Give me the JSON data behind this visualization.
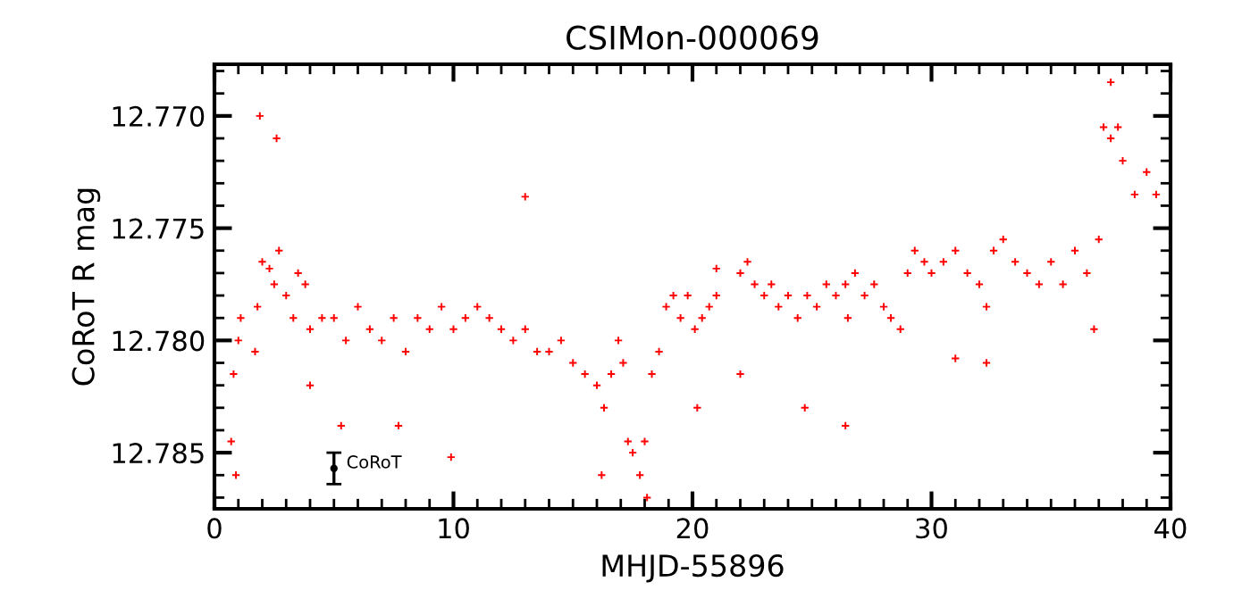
{
  "chart_data": {
    "type": "scatter",
    "title": "CSIMon-000069",
    "xlabel": "MHJD-55896",
    "ylabel": "CoRoT R mag",
    "xlim": [
      0,
      40
    ],
    "xticks": [
      0,
      10,
      20,
      30,
      40
    ],
    "ylim": [
      12.7875,
      12.7677
    ],
    "yticks": [
      {
        "value": 12.77,
        "label": "12.770"
      },
      {
        "value": 12.775,
        "label": "12.775"
      },
      {
        "value": 12.78,
        "label": "12.780"
      },
      {
        "value": 12.785,
        "label": "12.785"
      }
    ],
    "grid": false,
    "legend": false,
    "marker": "cross",
    "series": [
      {
        "color": "#ff0000",
        "x": [
          0.7,
          0.8,
          1.0,
          1.1,
          1.7,
          1.8,
          2.0,
          2.3,
          2.5,
          2.7,
          3.0,
          3.3,
          3.5,
          3.8,
          4.0,
          4.5,
          5.0,
          5.5,
          6.0,
          6.5,
          7.0,
          7.5,
          8.0,
          8.5,
          9.0,
          9.5,
          10.0,
          10.5,
          11.0,
          11.5,
          12.0,
          12.5,
          13.0,
          13.5,
          14.0,
          14.5,
          15.0,
          15.5,
          16.0,
          16.3,
          16.6,
          16.9,
          17.1,
          17.3,
          17.5,
          17.8,
          18.0,
          18.3,
          18.6,
          18.9,
          19.2,
          19.5,
          19.8,
          20.1,
          20.4,
          20.7,
          21.0,
          22.0,
          22.3,
          22.6,
          23.0,
          23.3,
          23.6,
          24.0,
          24.4,
          24.8,
          25.2,
          25.6,
          26.0,
          26.4,
          26.8,
          27.2,
          27.6,
          28.0,
          28.3,
          28.7,
          29.0,
          29.3,
          29.7,
          30.0,
          30.5,
          31.0,
          31.5,
          32.0,
          32.3,
          32.6,
          33.0,
          33.5,
          34.0,
          34.5,
          35.0,
          35.5,
          36.0,
          36.5,
          37.0,
          37.2,
          37.5,
          37.8,
          38.0,
          38.5,
          39.0,
          39.4,
          0.9,
          1.9,
          2.6,
          4.0,
          5.3,
          7.7,
          16.2,
          18.1,
          24.7,
          26.5,
          26.4,
          31.0,
          32.3,
          36.8,
          37.5,
          9.9,
          13.0,
          21.0,
          20.2,
          22.0
        ],
        "values": [
          12.7845,
          12.7815,
          12.78,
          12.779,
          12.7805,
          12.7785,
          12.7765,
          12.7768,
          12.7775,
          12.776,
          12.778,
          12.779,
          12.777,
          12.7775,
          12.7795,
          12.779,
          12.779,
          12.78,
          12.7785,
          12.7795,
          12.78,
          12.779,
          12.7805,
          12.779,
          12.7795,
          12.7785,
          12.7795,
          12.779,
          12.7785,
          12.779,
          12.7795,
          12.78,
          12.7795,
          12.7805,
          12.7805,
          12.78,
          12.781,
          12.7815,
          12.782,
          12.783,
          12.7815,
          12.78,
          12.781,
          12.7845,
          12.785,
          12.786,
          12.7845,
          12.7815,
          12.7805,
          12.7785,
          12.778,
          12.779,
          12.778,
          12.7795,
          12.779,
          12.7785,
          12.778,
          12.777,
          12.7765,
          12.7775,
          12.778,
          12.7775,
          12.7785,
          12.778,
          12.779,
          12.778,
          12.7785,
          12.7775,
          12.778,
          12.7775,
          12.777,
          12.778,
          12.7775,
          12.7785,
          12.779,
          12.7795,
          12.777,
          12.776,
          12.7765,
          12.777,
          12.7765,
          12.776,
          12.777,
          12.7775,
          12.7785,
          12.776,
          12.7755,
          12.7765,
          12.777,
          12.7775,
          12.7765,
          12.7775,
          12.776,
          12.777,
          12.7755,
          12.7705,
          12.771,
          12.7705,
          12.772,
          12.7735,
          12.7725,
          12.7735,
          12.786,
          12.77,
          12.771,
          12.782,
          12.7838,
          12.7838,
          12.786,
          12.787,
          12.783,
          12.779,
          12.7838,
          12.7808,
          12.781,
          12.7795,
          12.7685,
          12.7852,
          12.7736,
          12.7768,
          12.783,
          12.7815
        ]
      },
      {
        "color": "#000000",
        "x": [
          5
        ],
        "values": [
          12.7857
        ],
        "errors": [
          0.0007
        ]
      }
    ],
    "annotations": [
      {
        "text": "CoRoT",
        "x": 5,
        "y": 12.7857
      }
    ]
  }
}
